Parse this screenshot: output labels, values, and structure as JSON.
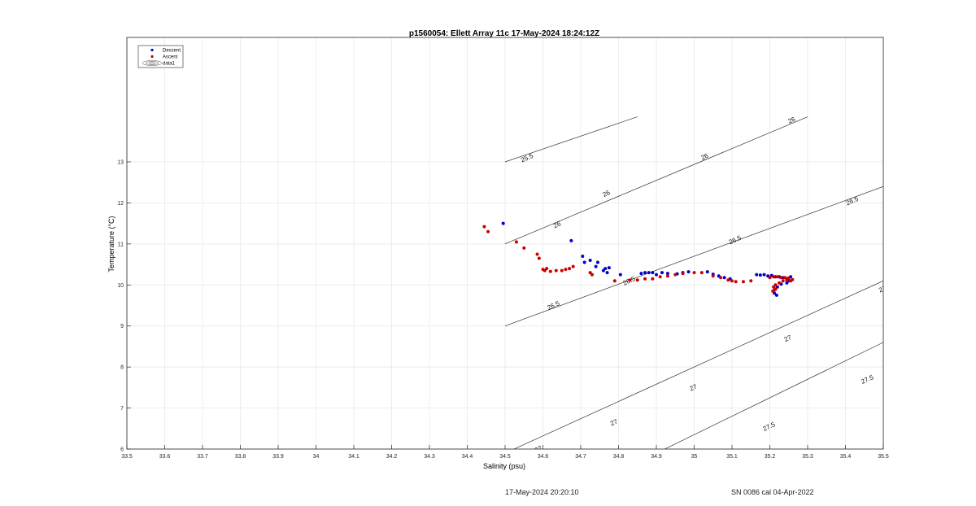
{
  "chart_data": {
    "type": "scatter",
    "title": "p1560054: Ellett Array 11c 17-May-2024 18:24:12Z",
    "xlabel": "Salinity (psu)",
    "ylabel": "Temperature (°C)",
    "xlim": [
      33.5,
      35.5
    ],
    "ylim": [
      6,
      14
    ],
    "xticks": [
      33.5,
      33.6,
      33.7,
      33.8,
      33.9,
      34,
      34.1,
      34.2,
      34.3,
      34.4,
      34.5,
      34.6,
      34.7,
      34.8,
      34.9,
      35,
      35.1,
      35.2,
      35.3,
      35.4,
      35.5
    ],
    "yticks": [
      6,
      7,
      8,
      9,
      10,
      11,
      12,
      13
    ],
    "grid": true,
    "legend_position": "top-left",
    "legend": [
      "Descent",
      "Ascent",
      "data1"
    ],
    "series": [
      {
        "name": "Descent",
        "color": "#0000cc",
        "x": [
          34.495,
          34.675,
          34.705,
          34.71,
          34.725,
          34.74,
          34.745,
          34.76,
          34.765,
          34.77,
          34.775,
          34.805,
          34.86,
          34.87,
          34.88,
          34.89,
          34.9,
          34.915,
          34.93,
          34.955,
          34.97,
          34.985,
          35.035,
          35.05,
          35.065,
          35.08,
          35.095,
          35.165,
          35.175,
          35.185,
          35.195,
          35.205,
          35.215,
          35.225,
          35.235,
          35.245,
          35.25,
          35.255,
          35.245,
          35.23,
          35.22,
          35.215,
          35.212,
          35.218
        ],
        "y": [
          11.5,
          11.08,
          10.7,
          10.55,
          10.6,
          10.45,
          10.55,
          10.35,
          10.4,
          10.3,
          10.42,
          10.25,
          10.28,
          10.3,
          10.3,
          10.3,
          10.25,
          10.3,
          10.28,
          10.27,
          10.3,
          10.32,
          10.32,
          10.26,
          10.22,
          10.18,
          10.15,
          10.25,
          10.24,
          10.25,
          10.22,
          10.23,
          10.2,
          10.2,
          10.18,
          10.15,
          10.1,
          10.2,
          10.05,
          10.02,
          9.95,
          9.9,
          9.8,
          9.75
        ]
      },
      {
        "name": "Ascent",
        "color": "#cc0000",
        "x": [
          34.445,
          34.455,
          34.53,
          34.55,
          34.585,
          34.59,
          34.6,
          34.605,
          34.61,
          34.62,
          34.635,
          34.65,
          34.66,
          34.67,
          34.68,
          34.725,
          34.73,
          34.79,
          34.83,
          34.85,
          34.87,
          34.89,
          34.91,
          34.93,
          34.95,
          34.97,
          35.0,
          35.02,
          35.05,
          35.07,
          35.09,
          35.1,
          35.11,
          35.13,
          35.15,
          35.2,
          35.21,
          35.22,
          35.23,
          35.24,
          35.25,
          35.26,
          35.255,
          35.245,
          35.235,
          35.225,
          35.215,
          35.21,
          35.212,
          35.208,
          35.215
        ],
        "y": [
          11.42,
          11.3,
          11.05,
          10.9,
          10.75,
          10.65,
          10.38,
          10.35,
          10.4,
          10.33,
          10.35,
          10.35,
          10.38,
          10.4,
          10.45,
          10.3,
          10.25,
          10.1,
          10.12,
          10.12,
          10.15,
          10.15,
          10.2,
          10.22,
          10.25,
          10.28,
          10.3,
          10.3,
          10.22,
          10.18,
          10.12,
          10.1,
          10.08,
          10.08,
          10.1,
          10.18,
          10.2,
          10.2,
          10.18,
          10.18,
          10.17,
          10.13,
          10.1,
          10.12,
          10.1,
          10.05,
          10.0,
          9.95,
          9.88,
          9.85,
          9.9
        ]
      }
    ],
    "contours": [
      {
        "label": "25.5",
        "from": [
          34.5,
          13.0
        ],
        "to": [
          34.85,
          14.1
        ]
      },
      {
        "label": "26",
        "from": [
          34.5,
          11.0
        ],
        "to": [
          35.3,
          14.1
        ]
      },
      {
        "label": "26.5",
        "from": [
          34.5,
          9.0
        ],
        "to": [
          35.5,
          12.4
        ]
      },
      {
        "label": "27",
        "from": [
          34.5,
          5.9
        ],
        "to": [
          35.5,
          10.1
        ]
      },
      {
        "label": "27.5",
        "from": [
          34.9,
          5.9
        ],
        "to": [
          35.5,
          8.6
        ]
      }
    ],
    "contour_labels": [
      {
        "text": "25.5",
        "x": 34.56,
        "y": 13.05
      },
      {
        "text": "26",
        "x": 35.26,
        "y": 13.97
      },
      {
        "text": "26",
        "x": 35.03,
        "y": 13.08
      },
      {
        "text": "26",
        "x": 34.77,
        "y": 12.18
      },
      {
        "text": "26",
        "x": 34.64,
        "y": 11.42
      },
      {
        "text": "26.5",
        "x": 35.42,
        "y": 12.0
      },
      {
        "text": "26.5",
        "x": 35.11,
        "y": 11.05
      },
      {
        "text": "26.5",
        "x": 34.83,
        "y": 10.05
      },
      {
        "text": "26.5",
        "x": 34.63,
        "y": 9.45
      },
      {
        "text": "27",
        "x": 35.5,
        "y": 9.85
      },
      {
        "text": "27",
        "x": 35.25,
        "y": 8.65
      },
      {
        "text": "27",
        "x": 35.0,
        "y": 7.45
      },
      {
        "text": "27",
        "x": 34.79,
        "y": 6.6
      },
      {
        "text": "27",
        "x": 34.59,
        "y": 5.95
      },
      {
        "text": "27.5",
        "x": 35.46,
        "y": 7.65
      },
      {
        "text": "27.5",
        "x": 35.2,
        "y": 6.5
      },
      {
        "text": "27.5",
        "x": 34.97,
        "y": 5.5
      }
    ]
  },
  "footer": {
    "left": "17-May-2024 20:20:10",
    "right": "SN 0086 cal 04-Apr-2022"
  }
}
